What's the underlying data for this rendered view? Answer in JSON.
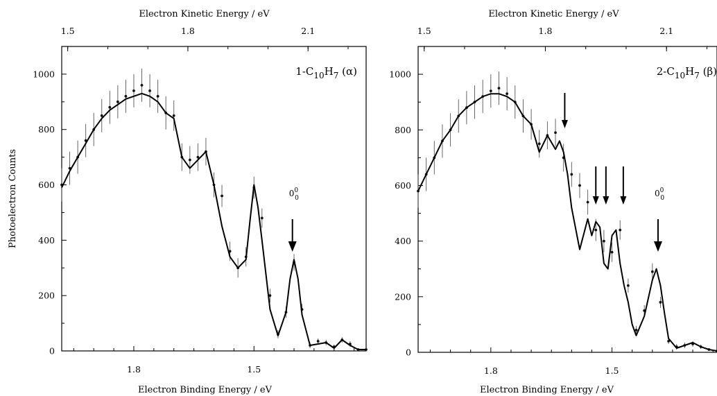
{
  "chart_data": [
    {
      "type": "scatter",
      "panel_label": "1-C10H7 (α)",
      "panel_label_parts": {
        "prefix": "1-C",
        "sub1": "10",
        "mid": "H",
        "sub2": "7",
        "suffix": " (α)"
      },
      "xlabel_bottom": "Electron Binding Energy / eV",
      "xlabel_top": "Electron Kinetic Energy / eV",
      "ylabel": "Photoelectron Counts",
      "x_bottom_ticks": [
        "1.8",
        "1.5"
      ],
      "x_top_ticks": [
        "1.5",
        "1.8",
        "2.1"
      ],
      "y_ticks": [
        "0",
        "200",
        "400",
        "600",
        "800",
        "1000"
      ],
      "x_range_binding_eV": [
        1.98,
        1.22
      ],
      "ylim": [
        0,
        1100
      ],
      "peak_annotation": {
        "label": "0",
        "sup": "0",
        "sub": "0",
        "binding_eV": 1.404
      },
      "extra_arrows_binding_eV": [],
      "series": [
        {
          "style": "data points with error bars",
          "x": [
            1.98,
            1.96,
            1.94,
            1.92,
            1.9,
            1.88,
            1.86,
            1.84,
            1.82,
            1.8,
            1.78,
            1.76,
            1.74,
            1.72,
            1.7,
            1.68,
            1.66,
            1.64,
            1.62,
            1.6,
            1.58,
            1.56,
            1.54,
            1.52,
            1.5,
            1.48,
            1.46,
            1.44,
            1.42,
            1.4,
            1.38,
            1.36,
            1.34,
            1.32,
            1.3,
            1.28,
            1.26,
            1.24,
            1.22
          ],
          "y": [
            600,
            660,
            700,
            760,
            800,
            850,
            880,
            900,
            920,
            940,
            960,
            940,
            920,
            860,
            850,
            700,
            690,
            700,
            720,
            600,
            560,
            360,
            300,
            340,
            590,
            480,
            200,
            60,
            140,
            320,
            150,
            20,
            35,
            30,
            15,
            40,
            25,
            5,
            5
          ],
          "yerr": [
            60,
            60,
            60,
            60,
            60,
            60,
            60,
            60,
            60,
            60,
            60,
            60,
            60,
            60,
            55,
            50,
            50,
            50,
            50,
            45,
            40,
            35,
            35,
            35,
            40,
            35,
            25,
            15,
            20,
            30,
            20,
            10,
            10,
            10,
            8,
            10,
            10,
            5,
            5
          ]
        },
        {
          "style": "fit line",
          "x": [
            1.98,
            1.96,
            1.94,
            1.92,
            1.9,
            1.88,
            1.86,
            1.84,
            1.82,
            1.8,
            1.78,
            1.76,
            1.74,
            1.72,
            1.7,
            1.68,
            1.66,
            1.64,
            1.62,
            1.6,
            1.58,
            1.56,
            1.54,
            1.52,
            1.51,
            1.5,
            1.49,
            1.48,
            1.46,
            1.44,
            1.42,
            1.41,
            1.4,
            1.39,
            1.38,
            1.36,
            1.34,
            1.32,
            1.3,
            1.28,
            1.26,
            1.24,
            1.22
          ],
          "y": [
            590,
            650,
            700,
            750,
            800,
            840,
            870,
            890,
            910,
            920,
            930,
            920,
            900,
            860,
            840,
            700,
            660,
            690,
            720,
            600,
            450,
            340,
            300,
            330,
            470,
            600,
            520,
            400,
            150,
            55,
            140,
            260,
            330,
            260,
            130,
            20,
            25,
            30,
            10,
            40,
            20,
            5,
            5
          ]
        }
      ]
    },
    {
      "type": "scatter",
      "panel_label": "2-C10H7 (β)",
      "panel_label_parts": {
        "prefix": "2-C",
        "sub1": "10",
        "mid": "H",
        "sub2": "7",
        "suffix": " (β)"
      },
      "xlabel_bottom": "Electron Binding Energy / eV",
      "xlabel_top": "Electron Kinetic Energy / eV",
      "ylabel": "",
      "x_bottom_ticks": [
        "1.8",
        "1.5"
      ],
      "x_top_ticks": [
        "1.5",
        "1.8",
        "2.1"
      ],
      "y_ticks": [
        "0",
        "200",
        "400",
        "600",
        "800",
        "1000"
      ],
      "x_range_binding_eV": [
        1.98,
        1.24
      ],
      "ylim": [
        0,
        1100
      ],
      "peak_annotation": {
        "label": "0",
        "sup": "0",
        "sub": "0",
        "binding_eV": 1.386
      },
      "extra_arrows_binding_eV": [
        1.617,
        1.54,
        1.515,
        1.472
      ],
      "series": [
        {
          "style": "data points with error bars",
          "x": [
            1.98,
            1.96,
            1.94,
            1.92,
            1.9,
            1.88,
            1.86,
            1.84,
            1.82,
            1.8,
            1.78,
            1.76,
            1.74,
            1.72,
            1.7,
            1.68,
            1.66,
            1.64,
            1.62,
            1.6,
            1.58,
            1.56,
            1.54,
            1.52,
            1.5,
            1.48,
            1.46,
            1.44,
            1.42,
            1.4,
            1.38,
            1.36,
            1.34,
            1.32,
            1.3,
            1.28,
            1.26,
            1.24
          ],
          "y": [
            580,
            640,
            700,
            760,
            800,
            850,
            880,
            900,
            920,
            940,
            950,
            930,
            900,
            850,
            820,
            750,
            780,
            790,
            700,
            640,
            600,
            540,
            440,
            400,
            360,
            440,
            240,
            80,
            150,
            290,
            180,
            40,
            20,
            25,
            30,
            20,
            10,
            5
          ],
          "yerr": [
            60,
            60,
            60,
            60,
            60,
            60,
            60,
            60,
            60,
            60,
            60,
            60,
            60,
            60,
            55,
            50,
            50,
            50,
            50,
            45,
            45,
            45,
            40,
            40,
            35,
            35,
            25,
            15,
            20,
            30,
            20,
            10,
            10,
            10,
            10,
            8,
            5,
            5
          ]
        },
        {
          "style": "fit line",
          "x": [
            1.98,
            1.96,
            1.94,
            1.92,
            1.9,
            1.88,
            1.86,
            1.84,
            1.82,
            1.8,
            1.78,
            1.76,
            1.74,
            1.72,
            1.7,
            1.68,
            1.66,
            1.64,
            1.63,
            1.62,
            1.61,
            1.6,
            1.58,
            1.56,
            1.55,
            1.54,
            1.53,
            1.52,
            1.51,
            1.5,
            1.49,
            1.48,
            1.47,
            1.46,
            1.45,
            1.44,
            1.42,
            1.4,
            1.39,
            1.38,
            1.37,
            1.36,
            1.34,
            1.32,
            1.3,
            1.28,
            1.26,
            1.24
          ],
          "y": [
            580,
            640,
            700,
            760,
            800,
            850,
            880,
            900,
            920,
            930,
            930,
            920,
            900,
            850,
            820,
            720,
            780,
            730,
            760,
            720,
            640,
            520,
            370,
            480,
            420,
            470,
            450,
            320,
            300,
            420,
            440,
            320,
            240,
            180,
            100,
            60,
            130,
            260,
            300,
            240,
            140,
            50,
            15,
            25,
            35,
            20,
            10,
            5
          ]
        }
      ]
    }
  ]
}
